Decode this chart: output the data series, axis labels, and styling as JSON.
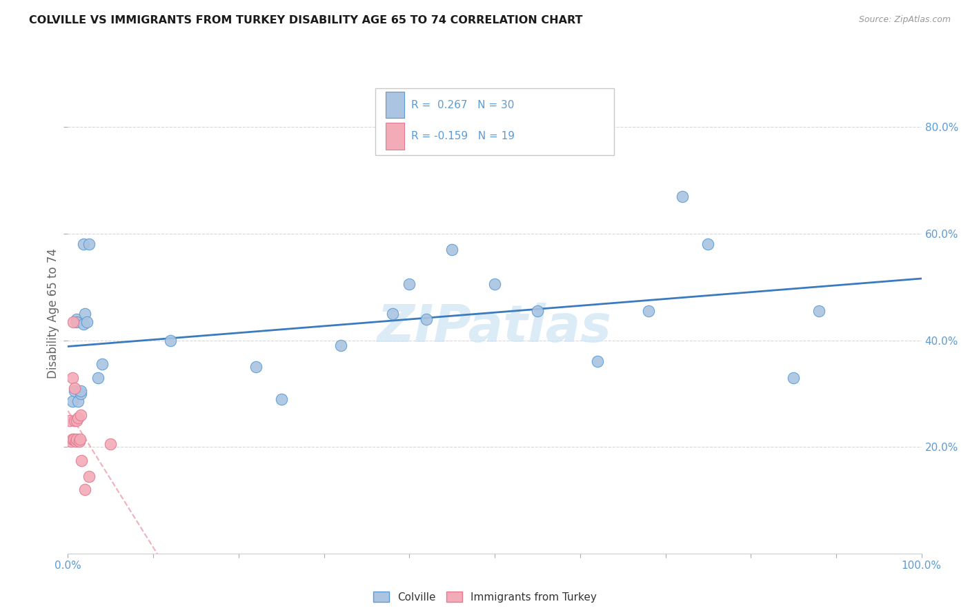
{
  "title": "COLVILLE VS IMMIGRANTS FROM TURKEY DISABILITY AGE 65 TO 74 CORRELATION CHART",
  "source": "Source: ZipAtlas.com",
  "ylabel": "Disability Age 65 to 74",
  "colville_R": 0.267,
  "colville_N": 30,
  "turkey_R": -0.159,
  "turkey_N": 19,
  "colville_color": "#aac4e2",
  "colville_edge_color": "#5b9bd5",
  "turkey_color": "#f4abb8",
  "turkey_edge_color": "#e07a90",
  "colville_line_color": "#3a7abf",
  "turkey_line_color": "#e8909f",
  "watermark": "ZIPatlas",
  "watermark_color": "#cde4f5",
  "legend_box_color": "#f0f0f0",
  "legend_border_color": "#c8c8c8",
  "grid_color": "#d8d8d8",
  "tick_color": "#5b9bd5",
  "colville_x": [
    0.005,
    0.008,
    0.01,
    0.01,
    0.012,
    0.015,
    0.015,
    0.018,
    0.018,
    0.02,
    0.022,
    0.025,
    0.04,
    0.12,
    0.22,
    0.32,
    0.38,
    0.4,
    0.42,
    0.45,
    0.5,
    0.55,
    0.62,
    0.68,
    0.72,
    0.75,
    0.85,
    0.88,
    0.035,
    0.25
  ],
  "colville_y": [
    0.285,
    0.305,
    0.44,
    0.435,
    0.285,
    0.3,
    0.305,
    0.58,
    0.43,
    0.45,
    0.435,
    0.58,
    0.355,
    0.4,
    0.35,
    0.39,
    0.45,
    0.505,
    0.44,
    0.57,
    0.505,
    0.455,
    0.36,
    0.455,
    0.67,
    0.58,
    0.33,
    0.455,
    0.33,
    0.29
  ],
  "turkey_x": [
    0.002,
    0.004,
    0.005,
    0.005,
    0.006,
    0.007,
    0.008,
    0.008,
    0.009,
    0.01,
    0.01,
    0.012,
    0.013,
    0.014,
    0.015,
    0.016,
    0.02,
    0.025,
    0.05
  ],
  "turkey_y": [
    0.25,
    0.21,
    0.215,
    0.33,
    0.435,
    0.215,
    0.25,
    0.31,
    0.21,
    0.215,
    0.25,
    0.255,
    0.21,
    0.215,
    0.26,
    0.175,
    0.12,
    0.145,
    0.205
  ],
  "xlim": [
    0.0,
    1.0
  ],
  "ylim": [
    0.0,
    0.9
  ],
  "x_tick_positions": [
    0.0,
    0.1,
    0.2,
    0.3,
    0.4,
    0.5,
    0.6,
    0.7,
    0.8,
    0.9,
    1.0
  ],
  "y_tick_positions": [
    0.2,
    0.4,
    0.6,
    0.8
  ]
}
